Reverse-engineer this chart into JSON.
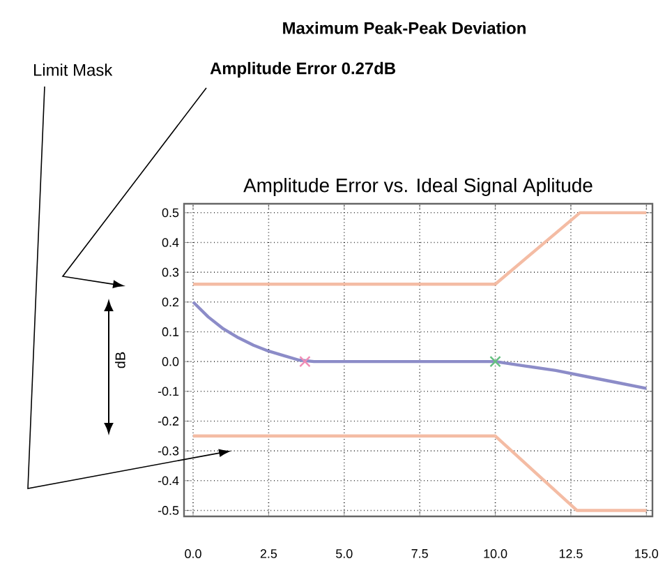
{
  "chart_data": {
    "type": "line",
    "title": "Amplitude Error vs. Ideal Signal Aplitude",
    "ylabel": "dB",
    "annotations": [
      "Maximum Peak-Peak Deviation",
      "Limit Mask",
      "Amplitude Error 0.27dB"
    ],
    "xlim": [
      -0.3,
      15.2
    ],
    "ylim": [
      -0.52,
      0.53
    ],
    "xticks": [
      {
        "value": 0,
        "label": "0.0"
      },
      2.5,
      {
        "value": 5,
        "label": "5.0"
      },
      7.5,
      {
        "value": 10,
        "label": "10.0"
      },
      12.5,
      {
        "value": 15,
        "label": "15.0"
      }
    ],
    "yticks": [
      -0.5,
      -0.4,
      -0.3,
      -0.2,
      -0.1,
      {
        "value": 0,
        "label": "0.0"
      },
      0.1,
      0.2,
      0.3,
      0.4,
      0.5
    ],
    "grid": true,
    "line_style": "solid",
    "series": [
      {
        "color": "#f4bca4",
        "marker": "none",
        "x": [
          0,
          10,
          12.8,
          15
        ],
        "values": [
          0.26,
          0.26,
          0.5,
          0.5
        ]
      },
      {
        "color": "#f4bca4",
        "marker": "none",
        "x": [
          0,
          10,
          12.7,
          15
        ],
        "values": [
          -0.25,
          -0.25,
          -0.5,
          -0.5
        ]
      },
      {
        "color": "#8c8cc8",
        "marker": "none",
        "x": [
          0,
          0.5,
          1,
          1.5,
          2,
          2.5,
          3,
          3.5,
          4,
          10,
          11,
          12,
          13,
          14,
          15
        ],
        "values": [
          0.2,
          0.15,
          0.11,
          0.08,
          0.055,
          0.035,
          0.02,
          0.005,
          0,
          0,
          -0.015,
          -0.03,
          -0.05,
          -0.07,
          -0.09
        ]
      },
      {
        "type": "scatter",
        "color": "#f08cb4",
        "marker": "cross",
        "x": [
          3.7
        ],
        "values": [
          0
        ]
      },
      {
        "type": "scatter",
        "color": "#64c080",
        "marker": "cross",
        "x": [
          10
        ],
        "values": [
          0
        ]
      }
    ]
  }
}
